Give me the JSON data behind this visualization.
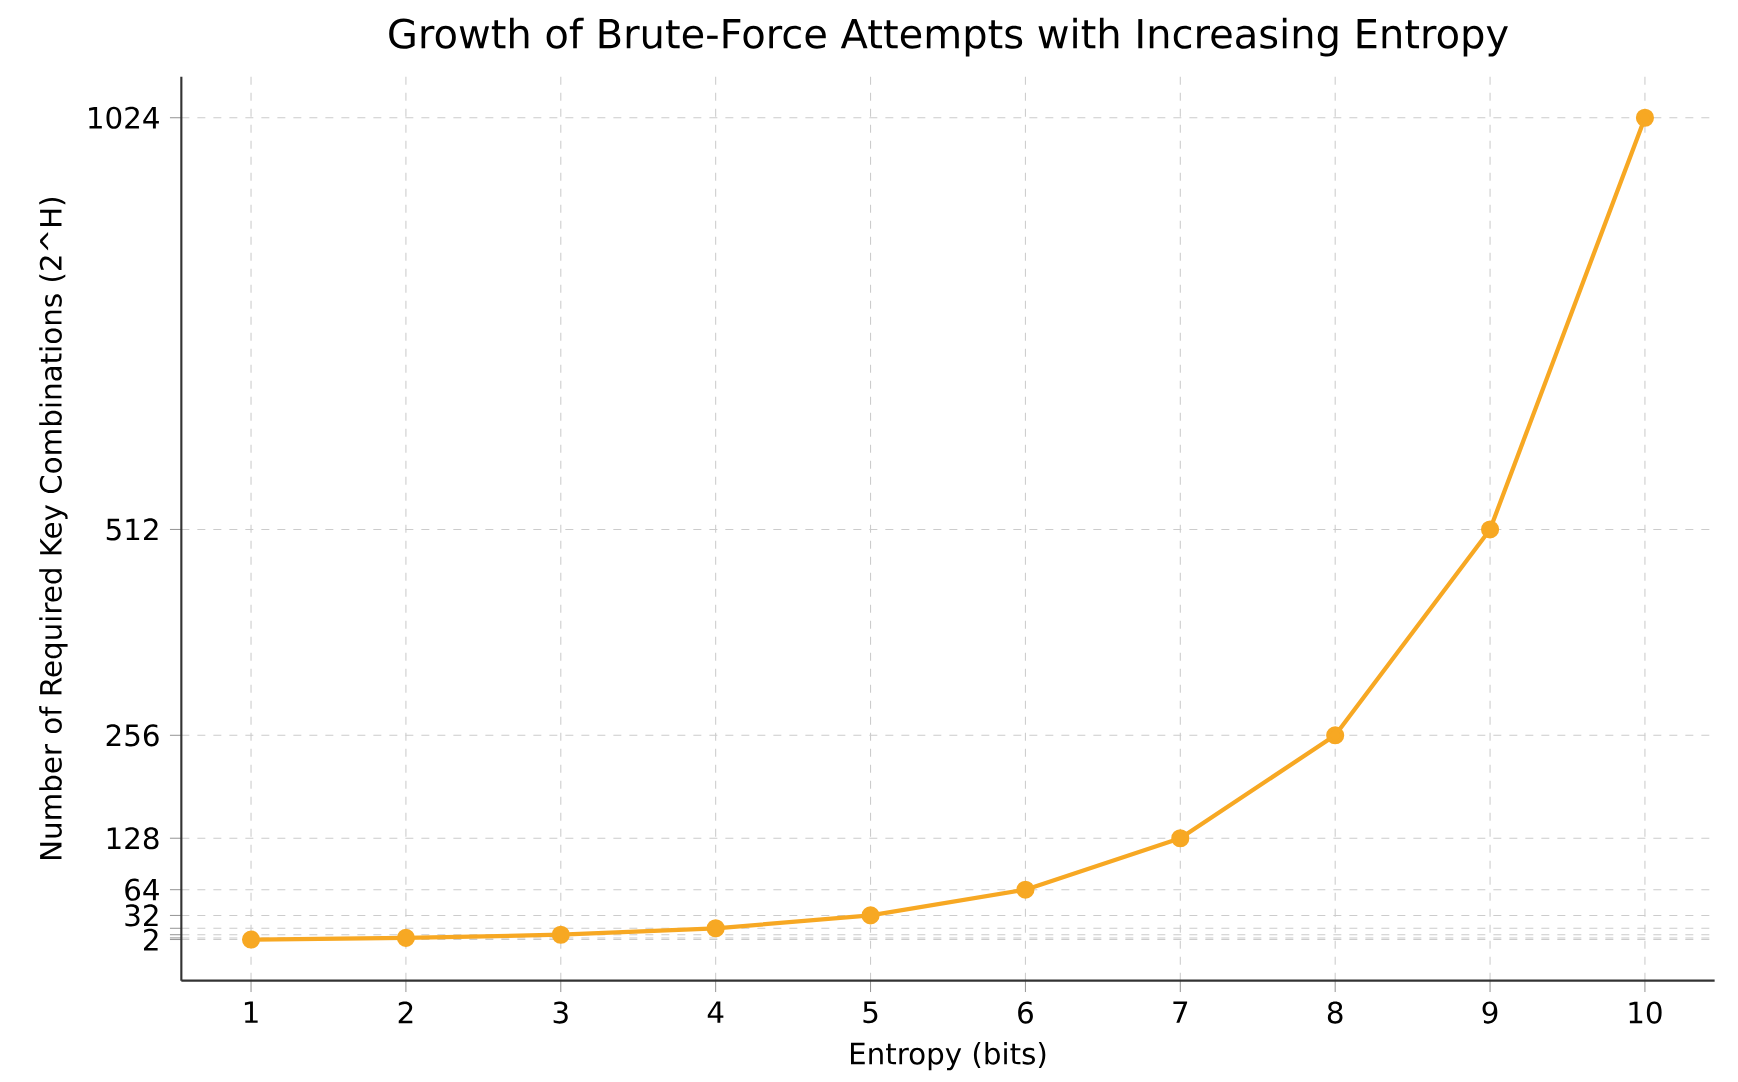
{
  "chart_data": {
    "type": "line",
    "title": "Growth of Brute-Force Attempts with Increasing Entropy",
    "xlabel": "Entropy (bits)",
    "ylabel": "Number of Required Key Combinations (2^H)",
    "x": [
      1,
      2,
      3,
      4,
      5,
      6,
      7,
      8,
      9,
      10
    ],
    "series": [
      {
        "color": "#f7a823",
        "values": [
          2,
          4,
          8,
          16,
          32,
          64,
          128,
          256,
          512,
          1024
        ]
      }
    ],
    "xlim": [
      0.55,
      10.45
    ],
    "xticks": [
      1,
      2,
      3,
      4,
      5,
      6,
      7,
      8,
      9,
      10
    ],
    "ylim": [
      -49.1,
      1075.1
    ],
    "yticks": [
      2,
      {
        "value": 4,
        "label": null
      },
      {
        "value": 8,
        "label": null
      },
      {
        "value": 16,
        "label": null
      },
      32,
      64,
      128,
      256,
      512,
      1024
    ],
    "grid": true,
    "marker": "circle",
    "line_style": "solid"
  }
}
